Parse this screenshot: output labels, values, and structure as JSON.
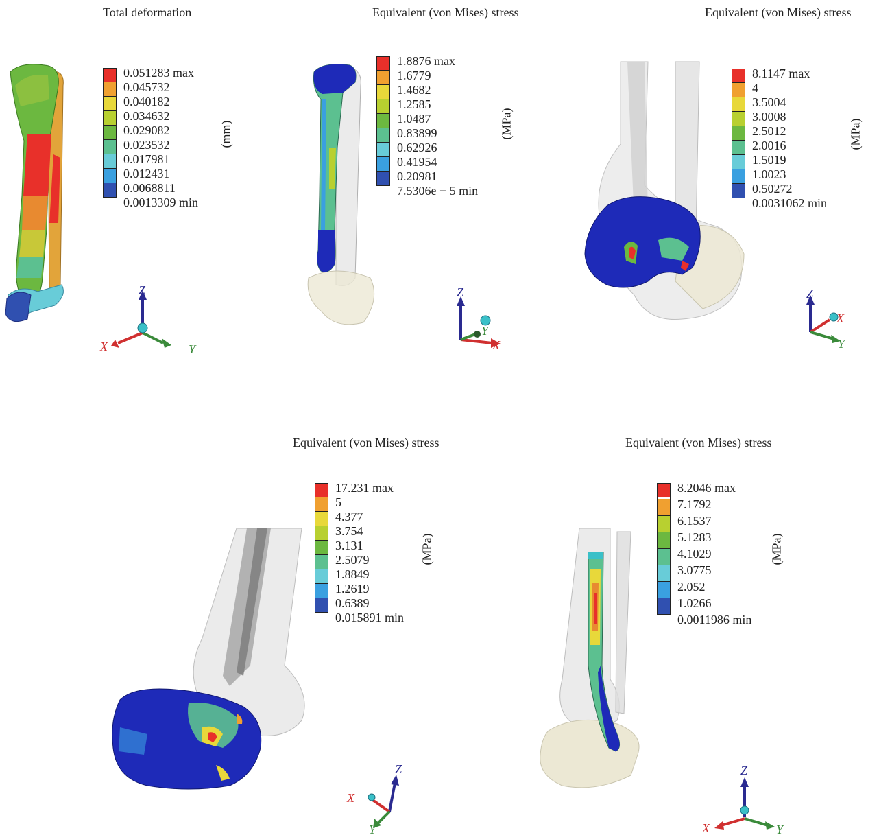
{
  "panels": [
    {
      "title": "Total deformation",
      "unit": "(mm)",
      "legend": [
        "0.051283 max",
        "0.045732",
        "0.040182",
        "0.034632",
        "0.029082",
        "0.023532",
        "0.017981",
        "0.012431",
        "0.0068811",
        "0.0013309 min"
      ]
    },
    {
      "title": "Equivalent (von Mises) stress",
      "unit": "(MPa)",
      "legend": [
        "1.8876 max",
        "1.6779",
        "1.4682",
        "1.2585",
        "1.0487",
        "0.83899",
        "0.62926",
        "0.41954",
        "0.20981",
        "7.5306e − 5 min"
      ]
    },
    {
      "title": "Equivalent (von Mises) stress",
      "unit": "(MPa)",
      "legend": [
        "8.1147 max",
        "4",
        "3.5004",
        "3.0008",
        "2.5012",
        "2.0016",
        "1.5019",
        "1.0023",
        "0.50272",
        "0.0031062 min"
      ]
    },
    {
      "title": "Equivalent (von Mises) stress",
      "unit": "(MPa)",
      "legend": [
        "17.231 max",
        "5",
        "4.377",
        "3.754",
        "3.131",
        "2.5079",
        "1.8849",
        "1.2619",
        "0.6389",
        "0.015891 min"
      ]
    },
    {
      "title": "Equivalent (von Mises) stress",
      "unit": "(MPa)",
      "legend": [
        "8.2046 max",
        "7.1792",
        "6.1537",
        "5.1283",
        "4.1029",
        "3.0775",
        "2.052",
        "1.0266",
        "0.0011986 min"
      ]
    }
  ],
  "axes_labels": {
    "x": "X",
    "y": "Y",
    "z": "Z"
  },
  "colors": {
    "scale_10": [
      "#e8302a",
      "#f0a030",
      "#e8d83a",
      "#b8d030",
      "#6cb840",
      "#5cc090",
      "#68ccd8",
      "#3aa0e0",
      "#3050b0"
    ],
    "scale_9": [
      "#e8302a",
      "#f0a030",
      "#b8d030",
      "#6cb840",
      "#5cc090",
      "#68ccd8",
      "#3aa0e0",
      "#3050b0"
    ],
    "axis_x": "#d03030",
    "axis_y": "#3a8a3a",
    "axis_z": "#2a2a90",
    "bone": "#ece8d4",
    "implant_blue": "#1e2ab8"
  }
}
